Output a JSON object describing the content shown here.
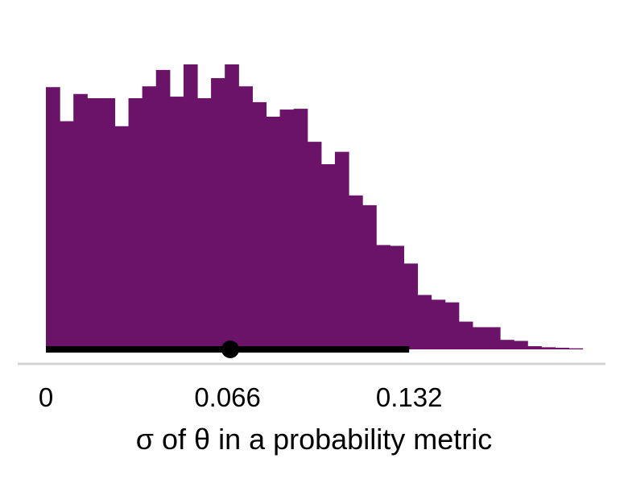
{
  "chart_data": {
    "type": "bar",
    "subtype": "histogram",
    "title": "",
    "xlabel": "σ of θ in a probability metric",
    "ylabel": "",
    "xlim": [
      0,
      0.196
    ],
    "x_ticks": [
      {
        "value": 0,
        "label": "0"
      },
      {
        "value": 0.066,
        "label": "0.066"
      },
      {
        "value": 0.132,
        "label": "0.132"
      }
    ],
    "y_axis_visible": false,
    "grid": false,
    "legend": "none",
    "bar_color": "#6b1369",
    "bin_width": 0.005,
    "bins_start": 0,
    "density": [
      0.993,
      0.864,
      0.967,
      0.951,
      0.951,
      0.845,
      0.951,
      0.996,
      1.058,
      0.957,
      1.079,
      0.951,
      1.027,
      1.079,
      0.996,
      0.936,
      0.881,
      0.908,
      0.911,
      0.786,
      0.701,
      0.748,
      0.583,
      0.546,
      0.395,
      0.392,
      0.325,
      0.206,
      0.188,
      0.178,
      0.105,
      0.084,
      0.084,
      0.036,
      0.032,
      0.012,
      0.008,
      0.006,
      0.004
    ],
    "interval": {
      "low": 0,
      "high": 0.132,
      "point": 0.067,
      "color": "#000000"
    }
  }
}
